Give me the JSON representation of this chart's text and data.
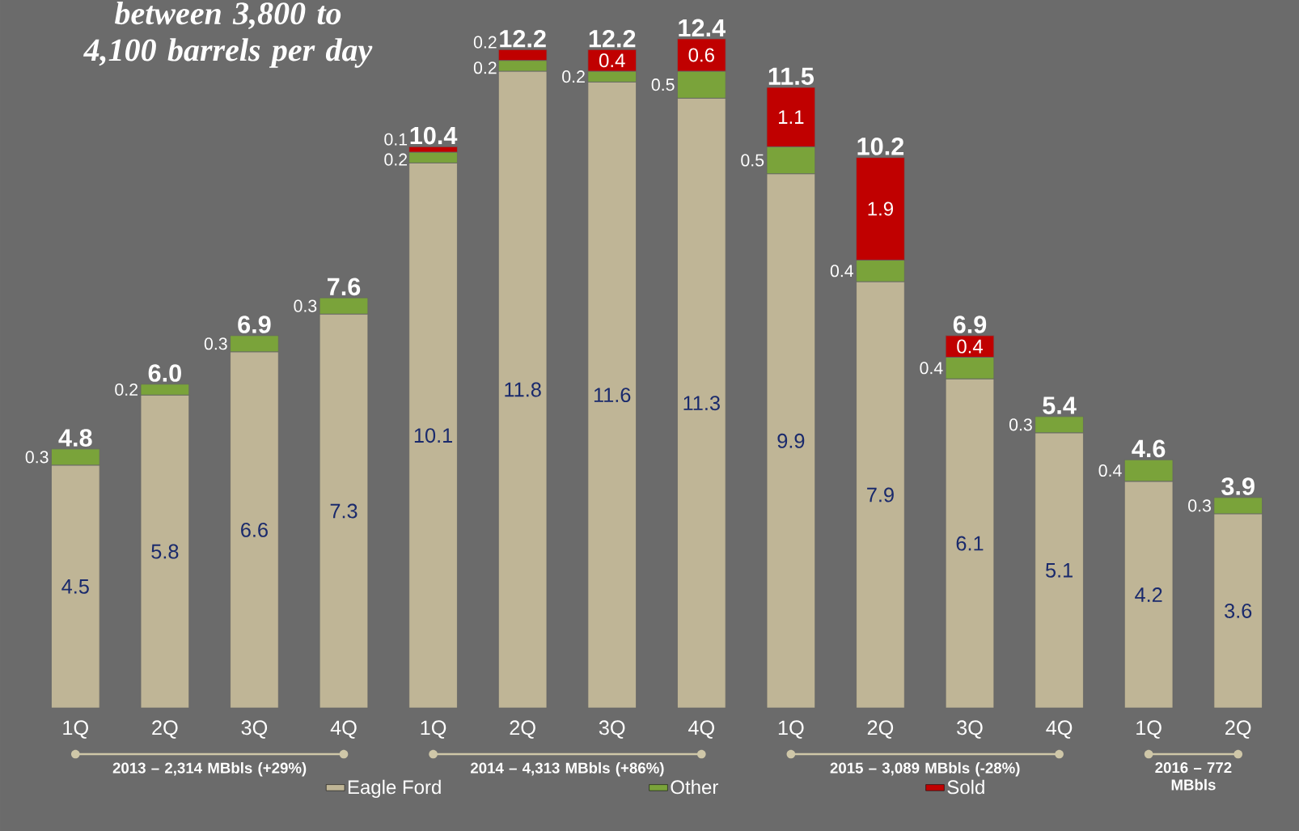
{
  "chart_data": {
    "type": "bar",
    "stacked": true,
    "title": "*between 3,800 to 4,100 barrels per day*",
    "categories": [
      "1Q",
      "2Q",
      "3Q",
      "4Q",
      "1Q",
      "2Q",
      "3Q",
      "4Q",
      "1Q",
      "2Q",
      "3Q",
      "4Q",
      "1Q",
      "2Q"
    ],
    "series": [
      {
        "name": "Eagle Ford",
        "color": "#bfb596",
        "values": [
          4.5,
          5.8,
          6.6,
          7.3,
          10.1,
          11.8,
          11.6,
          11.3,
          9.9,
          7.9,
          6.1,
          5.1,
          4.2,
          3.6
        ]
      },
      {
        "name": "Other",
        "color": "#7aa33a",
        "values": [
          0.3,
          0.2,
          0.3,
          0.3,
          0.2,
          0.2,
          0.2,
          0.5,
          0.5,
          0.4,
          0.4,
          0.3,
          0.4,
          0.3
        ]
      },
      {
        "name": "Sold",
        "color": "#c00000",
        "values": [
          null,
          null,
          null,
          null,
          0.1,
          0.2,
          0.4,
          0.6,
          1.1,
          1.9,
          0.4,
          null,
          null,
          null
        ]
      }
    ],
    "totals": [
      "4.8",
      "6.0",
      "6.9",
      "7.6",
      "10.4",
      "12.2",
      "12.2",
      "12.4",
      "11.5",
      "10.2",
      "6.9",
      "5.4",
      "4.6",
      "3.9"
    ],
    "data_labels": true,
    "legend": "bottom",
    "annotations": [
      "2013 – 2,314 MBbls (+29%)",
      "2014 – 4,313 MBbls (+86%)",
      "2015 – 3,089 MBbls (-28%)",
      "2016 – 772 MBbls"
    ]
  }
}
